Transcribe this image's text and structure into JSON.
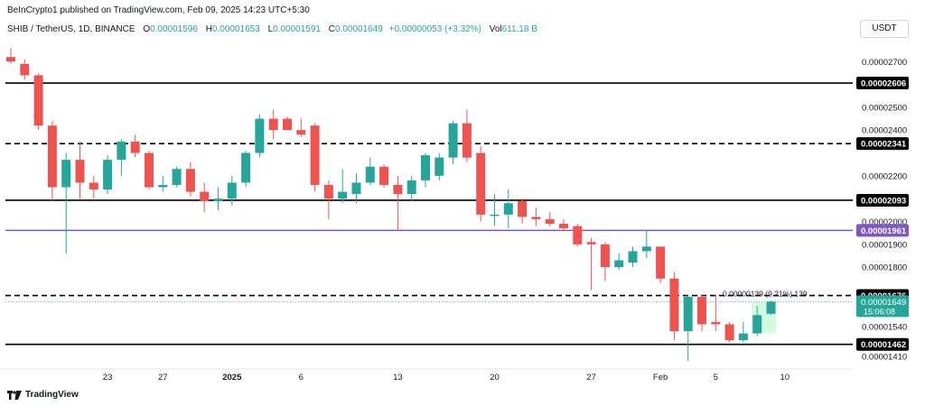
{
  "header": {
    "published": "BeInCrypto1 published on TradingView.com, Feb 09, 2025 14:23 UTC+5:30"
  },
  "legend": {
    "symbol": "SHIB / TetherUS, 1D, BINANCE",
    "o_label": "O",
    "o_value": "0.00001596",
    "h_label": "H",
    "h_value": "0.00001653",
    "l_label": "L",
    "l_value": "0.00001591",
    "c_label": "C",
    "c_value": "0.00001649",
    "change": "+0.00000053 (+3.32%)",
    "vol_label": "Vol",
    "vol_value": "611.18 B"
  },
  "currency": "USDT",
  "brand": "TradingView",
  "colors": {
    "up": "#26a69a",
    "down": "#ef5350",
    "purple": "#7e57c2",
    "measure": "#b9f6ca"
  },
  "chart_data": {
    "type": "candlestick",
    "y_range": [
      1.37e-05,
      2.78e-05
    ],
    "y_ticks": [
      {
        "v": 2.7e-05,
        "label": "0.00002700"
      },
      {
        "v": 2.5e-05,
        "label": "0.00002500"
      },
      {
        "v": 2.4e-05,
        "label": "0.00002400"
      },
      {
        "v": 2.2e-05,
        "label": "0.00002200"
      },
      {
        "v": 2e-05,
        "label": "0.00002000"
      },
      {
        "v": 1.9e-05,
        "label": "0.00001900"
      },
      {
        "v": 1.8e-05,
        "label": "0.00001800"
      },
      {
        "v": 1.54e-05,
        "label": "0.00001540"
      },
      {
        "v": 1.41e-05,
        "label": "0.00001410"
      }
    ],
    "x_ticks": [
      {
        "i": 7,
        "label": "23"
      },
      {
        "i": 11,
        "label": "27"
      },
      {
        "i": 16,
        "label": "2025"
      },
      {
        "i": 21,
        "label": "6"
      },
      {
        "i": 28,
        "label": "13"
      },
      {
        "i": 35,
        "label": "20"
      },
      {
        "i": 42,
        "label": "27"
      },
      {
        "i": 47,
        "label": "Feb"
      },
      {
        "i": 51,
        "label": "5"
      },
      {
        "i": 56,
        "label": "10"
      }
    ],
    "levels": [
      {
        "v": 2.606e-05,
        "label": "0.00002606",
        "style": "solid",
        "color": "#000000"
      },
      {
        "v": 2.341e-05,
        "label": "0.00002341",
        "style": "dashed",
        "color": "#000000"
      },
      {
        "v": 2.093e-05,
        "label": "0.00002093",
        "style": "solid",
        "color": "#000000"
      },
      {
        "v": 1.961e-05,
        "label": "0.00001961",
        "style": "solid",
        "color": "#7e57c2"
      },
      {
        "v": 1.676e-05,
        "label": "0.00001676",
        "style": "dashed",
        "color": "#000000"
      },
      {
        "v": 1.462e-05,
        "label": "0.00001462",
        "style": "solid",
        "color": "#000000"
      }
    ],
    "current_price": {
      "v": 1.649e-05,
      "label": "0.00001649",
      "countdown": "15:06:08"
    },
    "measure": {
      "from": 1.51e-05,
      "to": 1.649e-05,
      "from_i": 54,
      "to_i": 55,
      "label": "0.00000139 (9.21%) 139"
    },
    "candles": [
      {
        "o": 2.72e-05,
        "h": 2.76e-05,
        "l": 2.69e-05,
        "c": 2.7e-05
      },
      {
        "o": 2.69e-05,
        "h": 2.71e-05,
        "l": 2.62e-05,
        "c": 2.64e-05
      },
      {
        "o": 2.64e-05,
        "h": 2.65e-05,
        "l": 2.4e-05,
        "c": 2.42e-05
      },
      {
        "o": 2.42e-05,
        "h": 2.44e-05,
        "l": 2.09e-05,
        "c": 2.15e-05
      },
      {
        "o": 2.15e-05,
        "h": 2.3e-05,
        "l": 1.86e-05,
        "c": 2.27e-05
      },
      {
        "o": 2.27e-05,
        "h": 2.35e-05,
        "l": 2.1e-05,
        "c": 2.17e-05
      },
      {
        "o": 2.17e-05,
        "h": 2.2e-05,
        "l": 2.1e-05,
        "c": 2.14e-05
      },
      {
        "o": 2.14e-05,
        "h": 2.29e-05,
        "l": 2.12e-05,
        "c": 2.27e-05
      },
      {
        "o": 2.27e-05,
        "h": 2.36e-05,
        "l": 2.2e-05,
        "c": 2.35e-05
      },
      {
        "o": 2.35e-05,
        "h": 2.38e-05,
        "l": 2.28e-05,
        "c": 2.3e-05
      },
      {
        "o": 2.3e-05,
        "h": 2.31e-05,
        "l": 2.14e-05,
        "c": 2.15e-05
      },
      {
        "o": 2.15e-05,
        "h": 2.2e-05,
        "l": 2.13e-05,
        "c": 2.16e-05
      },
      {
        "o": 2.16e-05,
        "h": 2.24e-05,
        "l": 2.15e-05,
        "c": 2.23e-05
      },
      {
        "o": 2.23e-05,
        "h": 2.26e-05,
        "l": 2.11e-05,
        "c": 2.13e-05
      },
      {
        "o": 2.13e-05,
        "h": 2.17e-05,
        "l": 2.04e-05,
        "c": 2.09e-05
      },
      {
        "o": 2.09e-05,
        "h": 2.15e-05,
        "l": 2.05e-05,
        "c": 2.1e-05
      },
      {
        "o": 2.1e-05,
        "h": 2.2e-05,
        "l": 2.07e-05,
        "c": 2.17e-05
      },
      {
        "o": 2.17e-05,
        "h": 2.31e-05,
        "l": 2.15e-05,
        "c": 2.3e-05
      },
      {
        "o": 2.3e-05,
        "h": 2.47e-05,
        "l": 2.28e-05,
        "c": 2.45e-05
      },
      {
        "o": 2.45e-05,
        "h": 2.49e-05,
        "l": 2.36e-05,
        "c": 2.4e-05
      },
      {
        "o": 2.45e-05,
        "h": 2.46e-05,
        "l": 2.4e-05,
        "c": 2.4e-05
      },
      {
        "o": 2.4e-05,
        "h": 2.45e-05,
        "l": 2.37e-05,
        "c": 2.38e-05
      },
      {
        "o": 2.42e-05,
        "h": 2.43e-05,
        "l": 2.13e-05,
        "c": 2.16e-05
      },
      {
        "o": 2.16e-05,
        "h": 2.18e-05,
        "l": 2.01e-05,
        "c": 2.1e-05
      },
      {
        "o": 2.1e-05,
        "h": 2.23e-05,
        "l": 2.08e-05,
        "c": 2.13e-05
      },
      {
        "o": 2.12e-05,
        "h": 2.21e-05,
        "l": 2.08e-05,
        "c": 2.17e-05
      },
      {
        "o": 2.17e-05,
        "h": 2.28e-05,
        "l": 2.16e-05,
        "c": 2.24e-05
      },
      {
        "o": 2.24e-05,
        "h": 2.25e-05,
        "l": 2.15e-05,
        "c": 2.16e-05
      },
      {
        "o": 2.16e-05,
        "h": 2.2e-05,
        "l": 1.96e-05,
        "c": 2.12e-05
      },
      {
        "o": 2.12e-05,
        "h": 2.2e-05,
        "l": 2.09e-05,
        "c": 2.18e-05
      },
      {
        "o": 2.18e-05,
        "h": 2.3e-05,
        "l": 2.15e-05,
        "c": 2.29e-05
      },
      {
        "o": 2.2e-05,
        "h": 2.3e-05,
        "l": 2.18e-05,
        "c": 2.28e-05
      },
      {
        "o": 2.28e-05,
        "h": 2.44e-05,
        "l": 2.25e-05,
        "c": 2.43e-05
      },
      {
        "o": 2.43e-05,
        "h": 2.49e-05,
        "l": 2.26e-05,
        "c": 2.28e-05
      },
      {
        "o": 2.3e-05,
        "h": 2.33e-05,
        "l": 2e-05,
        "c": 2.03e-05
      },
      {
        "o": 2.03e-05,
        "h": 2.12e-05,
        "l": 1.98e-05,
        "c": 2.03e-05
      },
      {
        "o": 2.03e-05,
        "h": 2.14e-05,
        "l": 1.97e-05,
        "c": 2.08e-05
      },
      {
        "o": 2.09e-05,
        "h": 2.1e-05,
        "l": 1.99e-05,
        "c": 2.02e-05
      },
      {
        "o": 2.02e-05,
        "h": 2.06e-05,
        "l": 1.98e-05,
        "c": 2.01e-05
      },
      {
        "o": 2.01e-05,
        "h": 2.04e-05,
        "l": 1.98e-05,
        "c": 1.99e-05
      },
      {
        "o": 1.99e-05,
        "h": 2.01e-05,
        "l": 1.96e-05,
        "c": 1.97e-05
      },
      {
        "o": 1.98e-05,
        "h": 1.99e-05,
        "l": 1.89e-05,
        "c": 1.9e-05
      },
      {
        "o": 1.91e-05,
        "h": 1.93e-05,
        "l": 1.7e-05,
        "c": 1.9e-05
      },
      {
        "o": 1.9e-05,
        "h": 1.91e-05,
        "l": 1.74e-05,
        "c": 1.8e-05
      },
      {
        "o": 1.8e-05,
        "h": 1.86e-05,
        "l": 1.79e-05,
        "c": 1.83e-05
      },
      {
        "o": 1.82e-05,
        "h": 1.89e-05,
        "l": 1.8e-05,
        "c": 1.87e-05
      },
      {
        "o": 1.87e-05,
        "h": 1.96e-05,
        "l": 1.84e-05,
        "c": 1.89e-05
      },
      {
        "o": 1.89e-05,
        "h": 1.89e-05,
        "l": 1.73e-05,
        "c": 1.75e-05
      },
      {
        "o": 1.75e-05,
        "h": 1.78e-05,
        "l": 1.48e-05,
        "c": 1.52e-05
      },
      {
        "o": 1.52e-05,
        "h": 1.68e-05,
        "l": 1.39e-05,
        "c": 1.67e-05
      },
      {
        "o": 1.67e-05,
        "h": 1.68e-05,
        "l": 1.52e-05,
        "c": 1.55e-05
      },
      {
        "o": 1.56e-05,
        "h": 1.68e-05,
        "l": 1.52e-05,
        "c": 1.55e-05
      },
      {
        "o": 1.55e-05,
        "h": 1.56e-05,
        "l": 1.47e-05,
        "c": 1.48e-05
      },
      {
        "o": 1.48e-05,
        "h": 1.56e-05,
        "l": 1.47e-05,
        "c": 1.51e-05
      },
      {
        "o": 1.51e-05,
        "h": 1.63e-05,
        "l": 1.5e-05,
        "c": 1.59e-05
      },
      {
        "o": 1.596e-05,
        "h": 1.653e-05,
        "l": 1.591e-05,
        "c": 1.649e-05
      }
    ]
  }
}
